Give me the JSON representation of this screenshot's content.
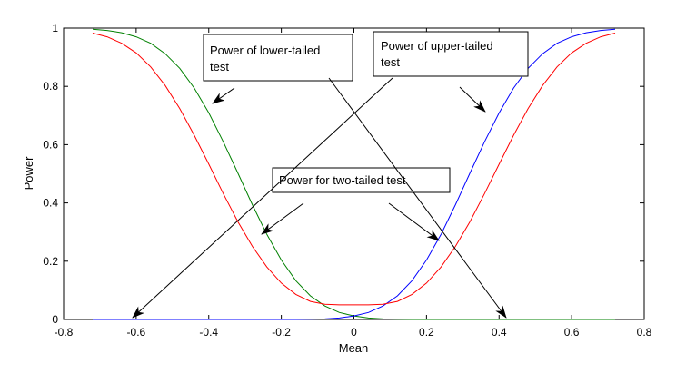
{
  "chart_data": {
    "type": "line",
    "title": "",
    "xlabel": "Mean",
    "ylabel": "Power",
    "xlim": [
      -0.8,
      0.8
    ],
    "ylim": [
      0,
      1
    ],
    "grid": false,
    "x_ticks": [
      "-0.8",
      "-0.6",
      "-0.4",
      "-0.2",
      "0",
      "0.2",
      "0.4",
      "0.6",
      "0.8"
    ],
    "y_ticks": [
      "0",
      "0.2",
      "0.4",
      "0.6",
      "0.8",
      "1"
    ],
    "x": [
      -0.72,
      -0.68,
      -0.64,
      -0.6,
      -0.56,
      -0.52,
      -0.48,
      -0.44,
      -0.4,
      -0.36,
      -0.32,
      -0.28,
      -0.24,
      -0.2,
      -0.16,
      -0.12,
      -0.08,
      -0.04,
      0,
      0.04,
      0.08,
      0.12,
      0.16,
      0.2,
      0.24,
      0.28,
      0.32,
      0.36,
      0.4,
      0.44,
      0.48,
      0.52,
      0.56,
      0.6,
      0.64,
      0.68,
      0.72
    ],
    "series": [
      {
        "color": "#008000",
        "values": [
          0.996,
          0.992,
          0.984,
          0.97,
          0.948,
          0.912,
          0.862,
          0.794,
          0.709,
          0.61,
          0.503,
          0.394,
          0.292,
          0.204,
          0.133,
          0.081,
          0.046,
          0.024,
          0.012,
          0.005,
          0.002,
          0.001,
          0.0,
          0.0,
          0.0,
          0.0,
          0.0,
          0.0,
          0.0,
          0.0,
          0.0,
          0.0,
          0.0,
          0.0,
          0.0,
          0.0,
          0.0
        ]
      },
      {
        "color": "#0000ff",
        "values": [
          0.0,
          0.0,
          0.0,
          0.0,
          0.0,
          0.0,
          0.0,
          0.0,
          0.0,
          0.0,
          0.0,
          0.0,
          0.0,
          0.0,
          0.0,
          0.001,
          0.002,
          0.005,
          0.012,
          0.024,
          0.046,
          0.081,
          0.133,
          0.204,
          0.292,
          0.394,
          0.503,
          0.61,
          0.709,
          0.794,
          0.862,
          0.912,
          0.948,
          0.97,
          0.984,
          0.992,
          0.996
        ]
      },
      {
        "color": "#ff0000",
        "values": [
          0.983,
          0.97,
          0.948,
          0.915,
          0.867,
          0.803,
          0.724,
          0.632,
          0.533,
          0.432,
          0.336,
          0.251,
          0.18,
          0.125,
          0.086,
          0.062,
          0.052,
          0.05,
          0.05,
          0.05,
          0.052,
          0.062,
          0.086,
          0.125,
          0.18,
          0.251,
          0.336,
          0.432,
          0.533,
          0.632,
          0.724,
          0.803,
          0.867,
          0.915,
          0.948,
          0.97,
          0.983
        ]
      }
    ],
    "annotations": [
      "Power of lower-tailed test",
      "Power of upper-tailed test",
      "Power for two-tailed test"
    ]
  }
}
